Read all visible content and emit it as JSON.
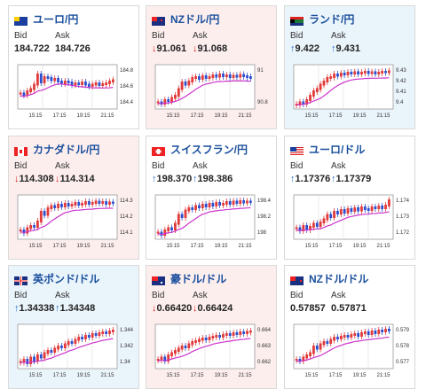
{
  "colors": {
    "up_candle": "#e23a3a",
    "down_candle": "#2d4fcf",
    "ma_line": "#cc33cc",
    "header_text": "#1a4f9c"
  },
  "bid_label": "Bid",
  "ask_label": "Ask",
  "cards": [
    {
      "pair": "ユーロ/円",
      "flag": "eu-flag-icon",
      "bg": "white",
      "bid": "184.722",
      "ask": "184.726",
      "bid_dir": "",
      "ask_dir": "",
      "yticks": [
        "184.8",
        "184.6",
        "184.4"
      ],
      "xticks": [
        "15:15",
        "17:15",
        "19:15",
        "21:15"
      ],
      "candles": [
        0.35,
        0.32,
        0.4,
        0.45,
        0.55,
        0.78,
        0.6,
        0.72,
        0.7,
        0.65,
        0.68,
        0.62,
        0.58,
        0.62,
        0.6,
        0.55,
        0.58,
        0.56,
        0.6,
        0.55,
        0.52,
        0.55,
        0.58,
        0.54,
        0.56,
        0.58,
        0.62,
        0.65
      ]
    },
    {
      "pair": "NZドル/円",
      "flag": "nz-flag-icon",
      "bg": "pink",
      "bid": "91.061",
      "ask": "91.068",
      "bid_dir": "↓",
      "ask_dir": "↓",
      "yticks": [
        "91",
        "90.8"
      ],
      "xticks": [
        "15:15",
        "17:15",
        "19:15",
        "21:15"
      ],
      "candles": [
        0.15,
        0.12,
        0.2,
        0.18,
        0.25,
        0.3,
        0.45,
        0.6,
        0.55,
        0.62,
        0.7,
        0.72,
        0.68,
        0.74,
        0.7,
        0.72,
        0.76,
        0.73,
        0.78,
        0.74,
        0.76,
        0.72,
        0.75,
        0.73,
        0.77,
        0.74,
        0.72,
        0.7
      ]
    },
    {
      "pair": "ランド/円",
      "flag": "za-flag-icon",
      "bg": "blue",
      "bid": "9.422",
      "ask": "9.431",
      "bid_dir": "↑",
      "ask_dir": "↑",
      "yticks": [
        "9.43",
        "9.42",
        "9.41",
        "9.4"
      ],
      "xticks": [
        "15:15",
        "17:15",
        "19:15",
        "21:15"
      ],
      "candles": [
        0.1,
        0.15,
        0.12,
        0.2,
        0.3,
        0.4,
        0.45,
        0.55,
        0.62,
        0.7,
        0.72,
        0.78,
        0.75,
        0.8,
        0.78,
        0.82,
        0.8,
        0.83,
        0.8,
        0.82,
        0.84,
        0.81,
        0.83,
        0.8,
        0.82,
        0.84,
        0.83,
        0.85
      ]
    },
    {
      "pair": "カナダドル/円",
      "flag": "ca-flag-icon",
      "bg": "pink",
      "bid": "114.308",
      "ask": "114.314",
      "bid_dir": "↓",
      "ask_dir": "↓",
      "yticks": [
        "114.3",
        "114.2",
        "114.1"
      ],
      "xticks": [
        "15:15",
        "17:15",
        "19:15",
        "21:15"
      ],
      "candles": [
        0.2,
        0.15,
        0.25,
        0.3,
        0.28,
        0.4,
        0.62,
        0.55,
        0.7,
        0.75,
        0.72,
        0.78,
        0.74,
        0.8,
        0.76,
        0.78,
        0.82,
        0.78,
        0.8,
        0.84,
        0.8,
        0.82,
        0.85,
        0.82,
        0.84,
        0.8,
        0.83,
        0.82
      ]
    },
    {
      "pair": "スイスフラン/円",
      "flag": "ch-flag-icon",
      "bg": "white",
      "bid": "198.370",
      "ask": "198.386",
      "bid_dir": "↑",
      "ask_dir": "↑",
      "yticks": [
        "198.4",
        "198.2",
        "198"
      ],
      "xticks": [
        "15:15",
        "17:15",
        "19:15",
        "21:15"
      ],
      "candles": [
        0.15,
        0.1,
        0.2,
        0.25,
        0.22,
        0.35,
        0.55,
        0.5,
        0.65,
        0.7,
        0.68,
        0.75,
        0.72,
        0.78,
        0.74,
        0.8,
        0.76,
        0.82,
        0.78,
        0.8,
        0.84,
        0.8,
        0.85,
        0.82,
        0.86,
        0.83,
        0.85,
        0.84
      ]
    },
    {
      "pair": "ユーロ/ドル",
      "flag": "eu-us-flag-icon",
      "bg": "white",
      "bid": "1.17376",
      "ask": "1.17379",
      "bid_dir": "↑",
      "ask_dir": "↑",
      "yticks": [
        "1.174",
        "1.173",
        "1.172"
      ],
      "xticks": [
        "15:15",
        "17:15",
        "19:15",
        "21:15"
      ],
      "candles": [
        0.25,
        0.2,
        0.3,
        0.22,
        0.28,
        0.35,
        0.3,
        0.38,
        0.45,
        0.55,
        0.5,
        0.62,
        0.58,
        0.66,
        0.6,
        0.68,
        0.64,
        0.7,
        0.65,
        0.72,
        0.68,
        0.66,
        0.72,
        0.7,
        0.74,
        0.7,
        0.76,
        0.88
      ]
    },
    {
      "pair": "英ポンド/ドル",
      "flag": "gb-us-flag-icon",
      "bg": "blue",
      "bid": "1.34338",
      "ask": "1.34348",
      "bid_dir": "↑",
      "ask_dir": "↑",
      "yticks": [
        "1.344",
        "1.342",
        "1.34"
      ],
      "xticks": [
        "15:15",
        "17:15",
        "19:15",
        "21:15"
      ],
      "candles": [
        0.15,
        0.2,
        0.12,
        0.25,
        0.18,
        0.3,
        0.25,
        0.35,
        0.4,
        0.38,
        0.45,
        0.5,
        0.48,
        0.55,
        0.6,
        0.58,
        0.65,
        0.7,
        0.68,
        0.74,
        0.72,
        0.78,
        0.76,
        0.8,
        0.82,
        0.8,
        0.84,
        0.86
      ]
    },
    {
      "pair": "豪ドル/ドル",
      "flag": "au-us-flag-icon",
      "bg": "pink",
      "bid": "0.66420",
      "ask": "0.66424",
      "bid_dir": "↓",
      "ask_dir": "↓",
      "yticks": [
        "0.664",
        "0.663",
        "0.662"
      ],
      "xticks": [
        "15:15",
        "17:15",
        "19:15",
        "21:15"
      ],
      "candles": [
        0.2,
        0.25,
        0.18,
        0.3,
        0.35,
        0.4,
        0.45,
        0.5,
        0.48,
        0.55,
        0.6,
        0.62,
        0.65,
        0.68,
        0.66,
        0.7,
        0.72,
        0.74,
        0.72,
        0.76,
        0.78,
        0.76,
        0.8,
        0.78,
        0.82,
        0.8,
        0.83,
        0.84
      ]
    },
    {
      "pair": "NZドル/ドル",
      "flag": "nz-us-flag-icon",
      "bg": "white",
      "bid": "0.57857",
      "ask": "0.57871",
      "bid_dir": "",
      "ask_dir": "",
      "yticks": [
        "0.579",
        "0.578",
        "0.577"
      ],
      "xticks": [
        "15:15",
        "17:15",
        "19:15",
        "21:15"
      ],
      "candles": [
        0.2,
        0.18,
        0.25,
        0.3,
        0.35,
        0.5,
        0.45,
        0.55,
        0.6,
        0.58,
        0.65,
        0.7,
        0.68,
        0.72,
        0.74,
        0.72,
        0.76,
        0.78,
        0.74,
        0.8,
        0.82,
        0.78,
        0.84,
        0.8,
        0.86,
        0.84,
        0.88,
        0.86
      ]
    }
  ]
}
